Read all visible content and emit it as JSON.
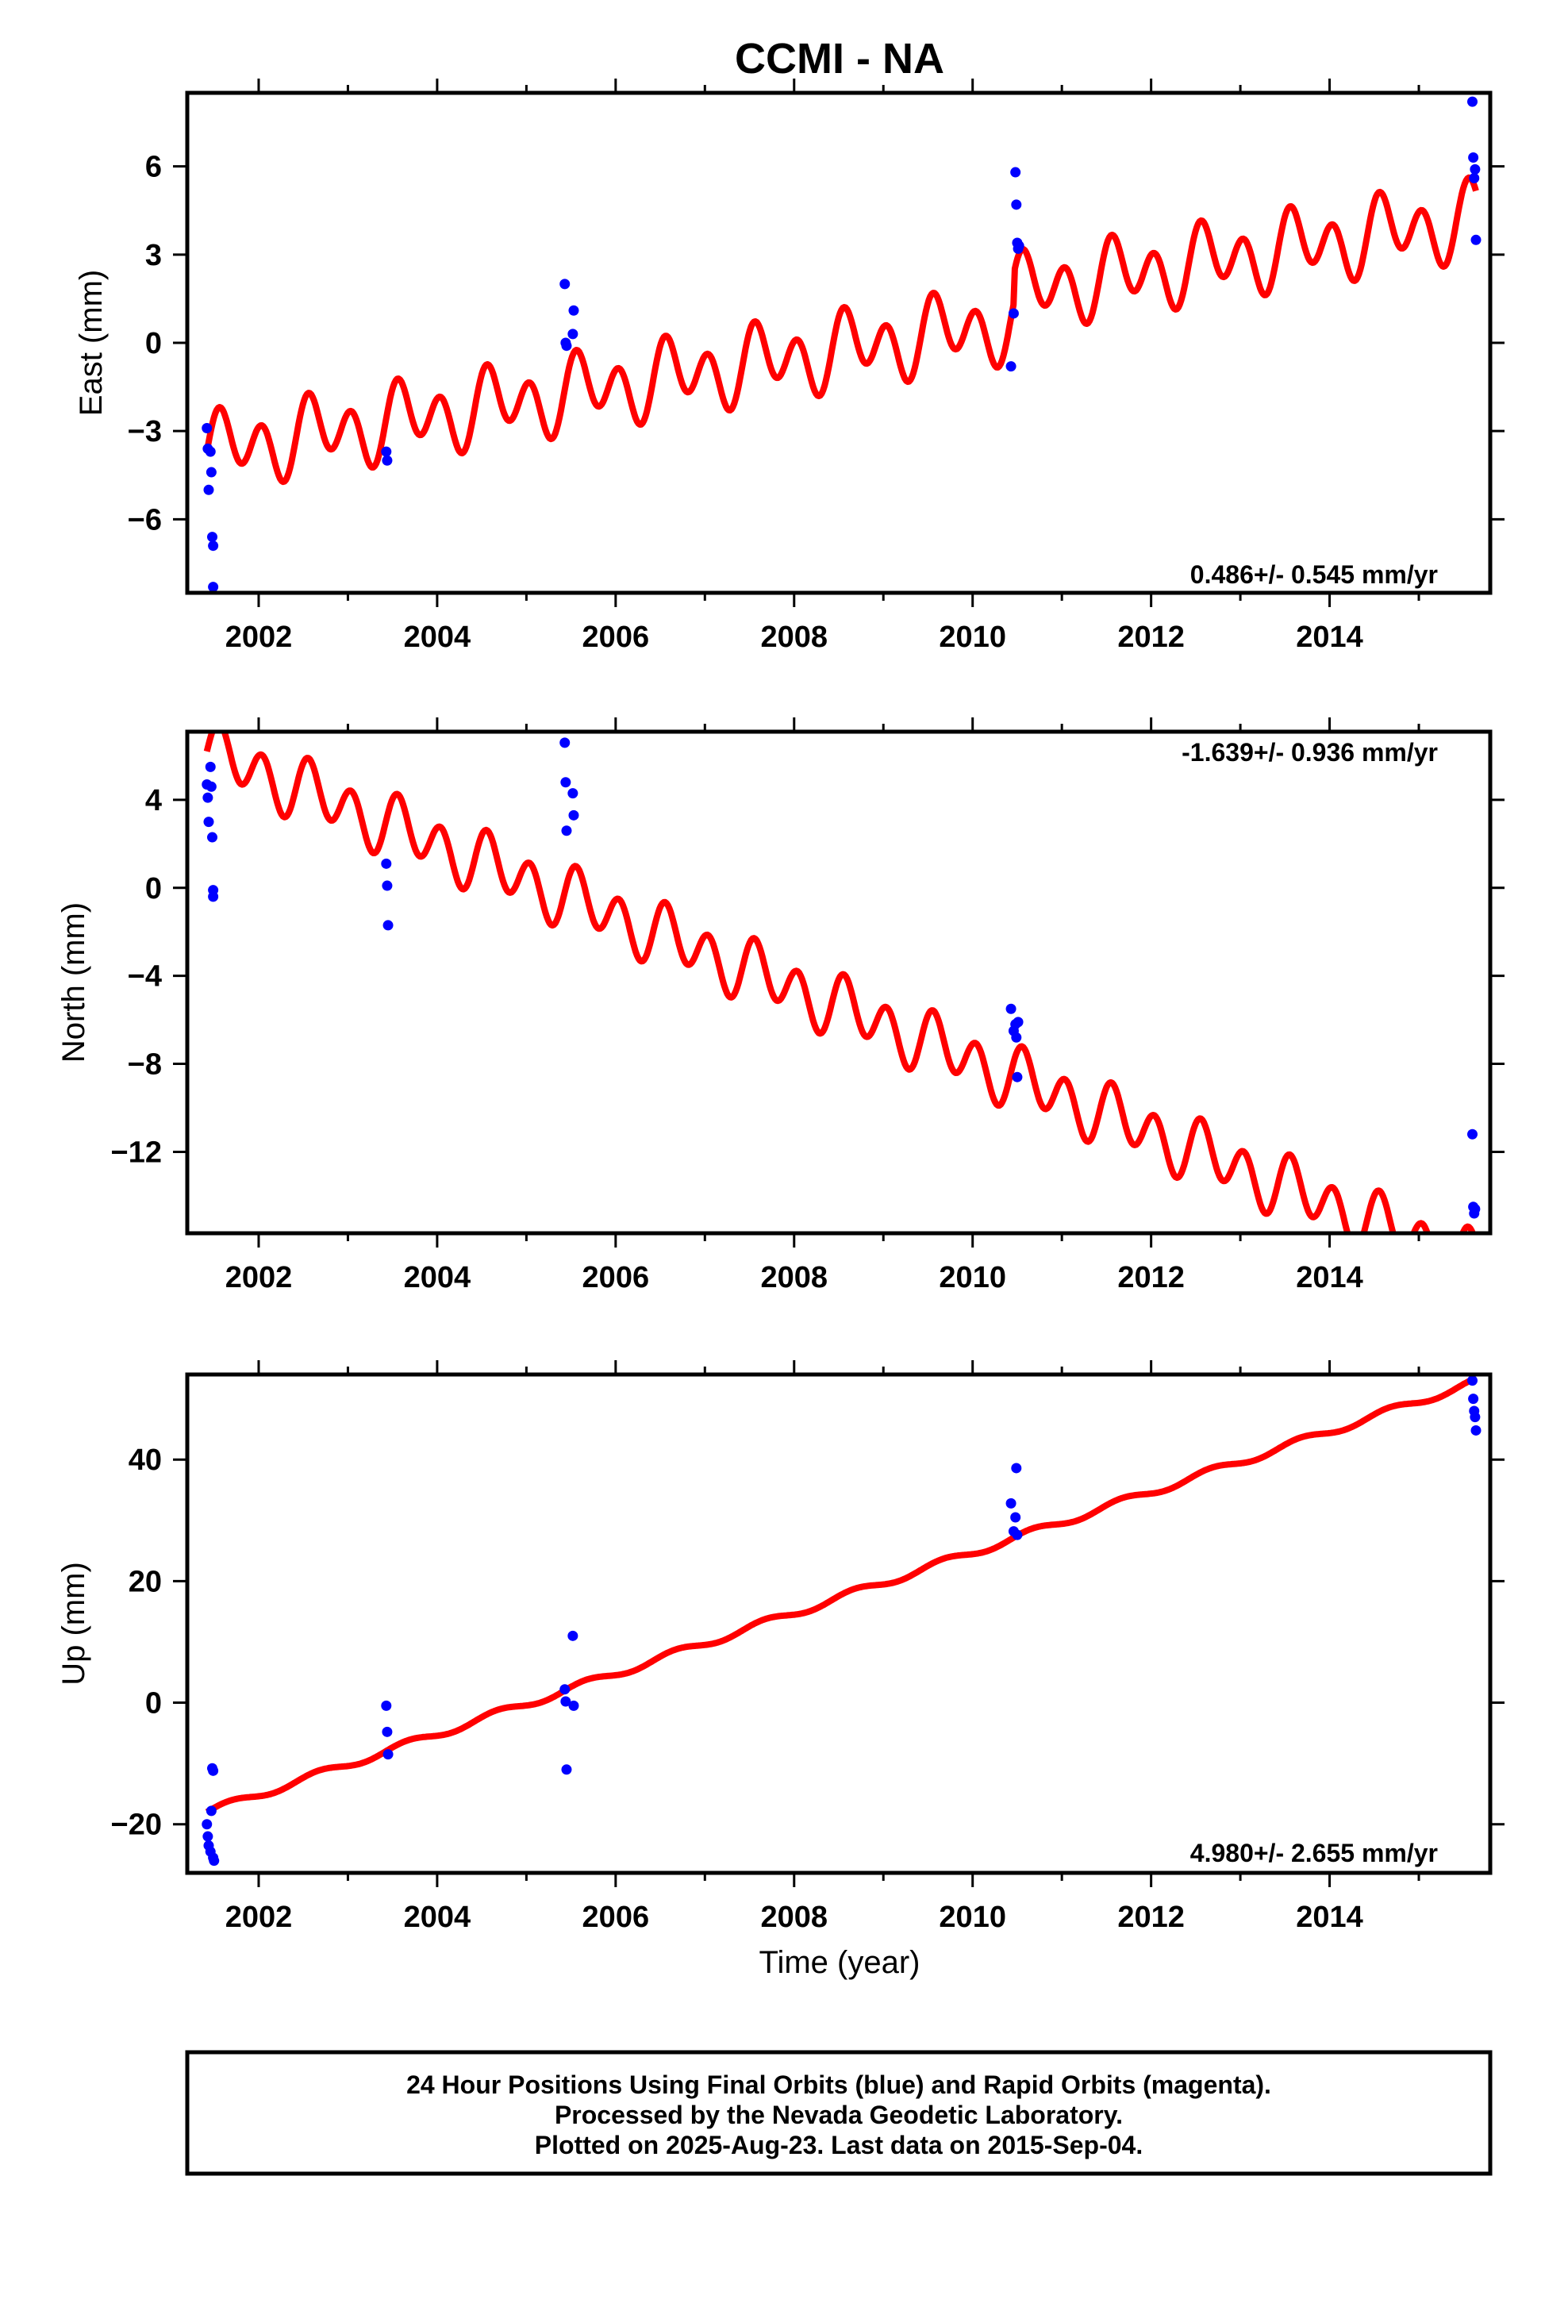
{
  "title": "CCMI - NA",
  "x_label": "Time (year)",
  "x_ticks": [
    "2002",
    "2004",
    "2006",
    "2008",
    "2010",
    "2012",
    "2014"
  ],
  "footer": {
    "line1": "24 Hour Positions Using Final Orbits (blue) and Rapid Orbits (magenta).",
    "line2": "Processed by the Nevada Geodetic Laboratory.",
    "line3": "Plotted on 2025-Aug-23. Last data on 2015-Sep-04."
  },
  "colors": {
    "final_orbits": "#0000ff",
    "model_fit": "#ff0000",
    "frame": "#000000"
  },
  "chart_data": [
    {
      "type": "scatter",
      "component": "east",
      "ylabel": "East (mm)",
      "rate_label": "0.486+/- 0.545 mm/yr",
      "rate_position": "bottom-right",
      "xlim": [
        2001.2,
        2015.8
      ],
      "ylim": [
        -8.5,
        8.5
      ],
      "y_ticks": [
        -6,
        -3,
        0,
        3,
        6
      ],
      "y_tick_labels": [
        "−6",
        "−3",
        "0",
        "3",
        "6"
      ],
      "series": [
        {
          "kind": "observations",
          "points": [
            [
              2001.42,
              -2.9
            ],
            [
              2001.43,
              -3.6
            ],
            [
              2001.44,
              -5.0
            ],
            [
              2001.46,
              -3.7
            ],
            [
              2001.47,
              -4.4
            ],
            [
              2001.48,
              -6.6
            ],
            [
              2001.49,
              -6.9
            ],
            [
              2001.49,
              -8.3
            ],
            [
              2003.43,
              -3.7
            ],
            [
              2003.44,
              -4.0
            ],
            [
              2005.43,
              2.0
            ],
            [
              2005.44,
              0.0
            ],
            [
              2005.45,
              -0.1
            ],
            [
              2005.52,
              0.3
            ],
            [
              2005.53,
              1.1
            ],
            [
              2010.43,
              -0.8
            ],
            [
              2010.46,
              1.0
            ],
            [
              2010.48,
              5.8
            ],
            [
              2010.49,
              4.7
            ],
            [
              2010.5,
              3.4
            ],
            [
              2010.51,
              3.2
            ],
            [
              2010.52,
              3.3
            ],
            [
              2015.6,
              8.2
            ],
            [
              2015.61,
              6.3
            ],
            [
              2015.62,
              5.6
            ],
            [
              2015.63,
              5.9
            ],
            [
              2015.64,
              3.5
            ]
          ]
        },
        {
          "kind": "model",
          "trend_mm_per_yr": 0.486,
          "offset_mm": -3.7,
          "start_year": 2001.42,
          "end_year": 2015.64,
          "annual_amplitude_mm": 0.6,
          "semiannual_amplitude_mm": 1.0,
          "steps": [
            {
              "year": 2010.47,
              "offset_mm": 1.0
            }
          ]
        }
      ]
    },
    {
      "type": "scatter",
      "component": "north",
      "ylabel": "North (mm)",
      "rate_label": "-1.639+/- 0.936 mm/yr",
      "rate_position": "top-right",
      "xlim": [
        2001.2,
        2015.8
      ],
      "ylim": [
        -15.7,
        7.1
      ],
      "y_ticks": [
        -12,
        -8,
        -4,
        0,
        4
      ],
      "y_tick_labels": [
        "−12",
        "−8",
        "−4",
        "0",
        "4"
      ],
      "series": [
        {
          "kind": "observations",
          "points": [
            [
              2001.42,
              4.7
            ],
            [
              2001.43,
              4.1
            ],
            [
              2001.44,
              3.0
            ],
            [
              2001.46,
              5.5
            ],
            [
              2001.47,
              4.6
            ],
            [
              2001.48,
              2.3
            ],
            [
              2001.49,
              -0.1
            ],
            [
              2001.49,
              -0.4
            ],
            [
              2003.43,
              1.1
            ],
            [
              2003.44,
              0.1
            ],
            [
              2003.45,
              -1.7
            ],
            [
              2005.43,
              6.6
            ],
            [
              2005.44,
              4.8
            ],
            [
              2005.45,
              2.6
            ],
            [
              2005.52,
              4.3
            ],
            [
              2005.53,
              3.3
            ],
            [
              2010.43,
              -5.5
            ],
            [
              2010.46,
              -6.5
            ],
            [
              2010.48,
              -6.2
            ],
            [
              2010.49,
              -6.8
            ],
            [
              2010.5,
              -8.6
            ],
            [
              2010.51,
              -6.1
            ],
            [
              2015.6,
              -11.2
            ],
            [
              2015.61,
              -14.5
            ],
            [
              2015.62,
              -14.8
            ],
            [
              2015.63,
              -14.6
            ]
          ]
        },
        {
          "kind": "model",
          "trend_mm_per_yr": -1.639,
          "offset_mm": 6.2,
          "start_year": 2001.42,
          "end_year": 2015.64,
          "annual_amplitude_mm": 0.5,
          "semiannual_amplitude_mm": 1.2,
          "steps": []
        }
      ]
    },
    {
      "type": "scatter",
      "component": "up",
      "ylabel": "Up (mm)",
      "rate_label": "4.980+/- 2.655 mm/yr",
      "rate_position": "bottom-right",
      "xlim": [
        2001.2,
        2015.8
      ],
      "ylim": [
        -28,
        54
      ],
      "y_ticks": [
        -20,
        0,
        20,
        40
      ],
      "y_tick_labels": [
        "−20",
        "0",
        "20",
        "40"
      ],
      "series": [
        {
          "kind": "observations",
          "points": [
            [
              2001.42,
              -20.0
            ],
            [
              2001.43,
              -22.0
            ],
            [
              2001.44,
              -23.5
            ],
            [
              2001.46,
              -24.5
            ],
            [
              2001.47,
              -17.8
            ],
            [
              2001.48,
              -10.8
            ],
            [
              2001.49,
              -11.2
            ],
            [
              2001.49,
              -25.5
            ],
            [
              2001.5,
              -26.0
            ],
            [
              2003.43,
              -0.5
            ],
            [
              2003.44,
              -4.8
            ],
            [
              2003.45,
              -8.5
            ],
            [
              2005.43,
              2.2
            ],
            [
              2005.44,
              0.2
            ],
            [
              2005.45,
              -11.0
            ],
            [
              2005.52,
              11.0
            ],
            [
              2005.53,
              -0.5
            ],
            [
              2010.43,
              32.8
            ],
            [
              2010.46,
              28.2
            ],
            [
              2010.48,
              30.5
            ],
            [
              2010.49,
              38.6
            ],
            [
              2010.5,
              27.6
            ],
            [
              2015.6,
              53.0
            ],
            [
              2015.61,
              50.0
            ],
            [
              2015.62,
              48.0
            ],
            [
              2015.63,
              47.0
            ],
            [
              2015.64,
              44.8
            ]
          ]
        },
        {
          "kind": "model",
          "trend_mm_per_yr": 4.98,
          "offset_mm": -18.0,
          "start_year": 2001.42,
          "end_year": 2015.64,
          "annual_amplitude_mm": 0.6,
          "semiannual_amplitude_mm": 0.0,
          "steps": []
        }
      ]
    }
  ]
}
